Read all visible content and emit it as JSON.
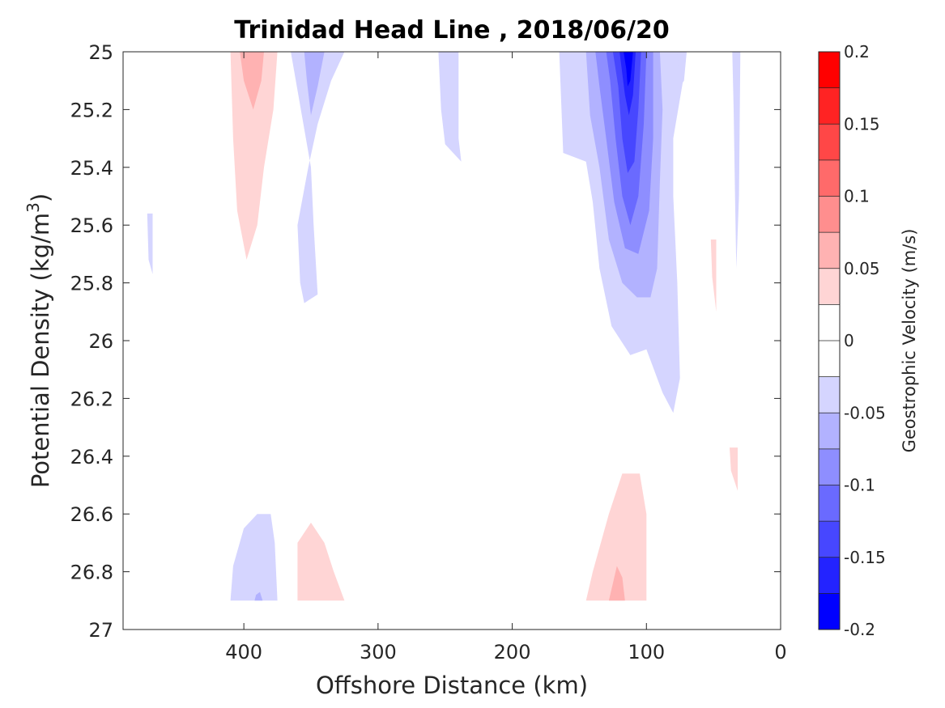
{
  "chart_data": {
    "type": "contour",
    "title": "Trinidad Head Line , 2018/06/20",
    "xlabel": "Offshore Distance (km)",
    "ylabel": "Potential Density (kg/m",
    "ylabel_superscript": "3",
    "ylabel_suffix": ")",
    "xlim": [
      490,
      0
    ],
    "ylim": [
      25,
      27
    ],
    "x_reversed": true,
    "y_reversed": true,
    "x_ticks": [
      400,
      300,
      200,
      100,
      0
    ],
    "x_tick_labels": [
      "400",
      "300",
      "200",
      "100",
      "0"
    ],
    "y_ticks": [
      25,
      25.2,
      25.4,
      25.6,
      25.8,
      26,
      26.2,
      26.4,
      26.6,
      26.8,
      27
    ],
    "y_tick_labels": [
      "25",
      "25.2",
      "25.4",
      "25.6",
      "25.8",
      "26",
      "26.2",
      "26.4",
      "26.6",
      "26.8",
      "27"
    ],
    "colorbar": {
      "label": "Geostrophic Velocity (m/s)",
      "range": [
        -0.2,
        0.2
      ],
      "ticks": [
        0.2,
        0.15,
        0.1,
        0.05,
        0,
        -0.05,
        -0.1,
        -0.15,
        -0.2
      ],
      "tick_labels": [
        "0.2",
        "0.15",
        "0.1",
        "0.05",
        "0",
        "-0.05",
        "-0.1",
        "-0.15",
        "-0.2"
      ],
      "levels": [
        {
          "min": 0.175,
          "max": 0.2,
          "color": "#ff0000"
        },
        {
          "min": 0.15,
          "max": 0.175,
          "color": "#ff2323"
        },
        {
          "min": 0.125,
          "max": 0.15,
          "color": "#ff4747"
        },
        {
          "min": 0.1,
          "max": 0.125,
          "color": "#ff6a6a"
        },
        {
          "min": 0.075,
          "max": 0.1,
          "color": "#ff8e8e"
        },
        {
          "min": 0.05,
          "max": 0.075,
          "color": "#ffb2b2"
        },
        {
          "min": 0.025,
          "max": 0.05,
          "color": "#ffd5d5"
        },
        {
          "min": 0,
          "max": 0.025,
          "color": "#ffffff"
        },
        {
          "min": -0.025,
          "max": 0,
          "color": "#ffffff"
        },
        {
          "min": -0.05,
          "max": -0.025,
          "color": "#d5d5ff"
        },
        {
          "min": -0.075,
          "max": -0.05,
          "color": "#b2b2ff"
        },
        {
          "min": -0.1,
          "max": -0.075,
          "color": "#8e8eff"
        },
        {
          "min": -0.125,
          "max": -0.1,
          "color": "#6a6aff"
        },
        {
          "min": -0.15,
          "max": -0.125,
          "color": "#4747ff"
        },
        {
          "min": -0.175,
          "max": -0.15,
          "color": "#2323ff"
        },
        {
          "min": -0.2,
          "max": -0.175,
          "color": "#0000ff"
        }
      ]
    },
    "regions": [
      {
        "level": -0.0375,
        "points": [
          [
            165,
            25
          ],
          [
            70,
            25
          ],
          [
            72,
            25.08
          ],
          [
            80,
            25.3
          ],
          [
            80,
            25.5
          ],
          [
            77,
            25.8
          ],
          [
            75,
            26.13
          ],
          [
            80,
            26.25
          ],
          [
            88,
            26.18
          ],
          [
            100,
            26.03
          ],
          [
            112,
            26.05
          ],
          [
            126,
            25.95
          ],
          [
            135,
            25.75
          ],
          [
            140,
            25.52
          ],
          [
            145,
            25.38
          ],
          [
            162,
            25.35
          ]
        ]
      },
      {
        "level": -0.0625,
        "points": [
          [
            145,
            25
          ],
          [
            90,
            25
          ],
          [
            88,
            25.2
          ],
          [
            90,
            25.45
          ],
          [
            92,
            25.75
          ],
          [
            97,
            25.85
          ],
          [
            107,
            25.85
          ],
          [
            118,
            25.8
          ],
          [
            128,
            25.65
          ],
          [
            135,
            25.4
          ],
          [
            142,
            25.22
          ]
        ]
      },
      {
        "level": -0.0875,
        "points": [
          [
            138,
            25
          ],
          [
            95,
            25
          ],
          [
            95,
            25.3
          ],
          [
            98,
            25.55
          ],
          [
            106,
            25.7
          ],
          [
            116,
            25.68
          ],
          [
            124,
            25.52
          ],
          [
            130,
            25.3
          ],
          [
            135,
            25.12
          ]
        ]
      },
      {
        "level": -0.1125,
        "points": [
          [
            130,
            25
          ],
          [
            100,
            25
          ],
          [
            102,
            25.25
          ],
          [
            106,
            25.5
          ],
          [
            112,
            25.6
          ],
          [
            118,
            25.5
          ],
          [
            123,
            25.3
          ],
          [
            127,
            25.1
          ]
        ]
      },
      {
        "level": -0.1375,
        "points": [
          [
            125,
            25
          ],
          [
            104,
            25
          ],
          [
            106,
            25.2
          ],
          [
            109,
            25.38
          ],
          [
            114,
            25.42
          ],
          [
            118,
            25.3
          ],
          [
            121,
            25.12
          ]
        ]
      },
      {
        "level": -0.1625,
        "points": [
          [
            120,
            25
          ],
          [
            108,
            25
          ],
          [
            110,
            25.15
          ],
          [
            113,
            25.22
          ],
          [
            116,
            25.15
          ]
        ]
      },
      {
        "level": -0.1875,
        "points": [
          [
            117,
            25
          ],
          [
            110,
            25
          ],
          [
            112,
            25.1
          ],
          [
            114,
            25.12
          ],
          [
            115,
            25.06
          ]
        ]
      },
      {
        "level": -0.0375,
        "points": [
          [
            365,
            25
          ],
          [
            325,
            25
          ],
          [
            335,
            25.1
          ],
          [
            345,
            25.25
          ],
          [
            352,
            25.4
          ],
          [
            360,
            25.6
          ],
          [
            358,
            25.8
          ],
          [
            355,
            25.87
          ],
          [
            345,
            25.84
          ],
          [
            348,
            25.6
          ],
          [
            350,
            25.4
          ]
        ]
      },
      {
        "level": -0.0625,
        "points": [
          [
            355,
            25
          ],
          [
            340,
            25
          ],
          [
            345,
            25.12
          ],
          [
            350,
            25.22
          ],
          [
            353,
            25.1
          ]
        ]
      },
      {
        "level": -0.0375,
        "points": [
          [
            255,
            25
          ],
          [
            240,
            25
          ],
          [
            240,
            25.3
          ],
          [
            238,
            25.38
          ],
          [
            250,
            25.32
          ],
          [
            253,
            25.2
          ]
        ]
      },
      {
        "level": -0.0375,
        "points": [
          [
            77,
            25
          ],
          [
            70,
            25
          ],
          [
            72,
            25.1
          ],
          [
            75,
            25.12
          ]
        ]
      },
      {
        "level": -0.0375,
        "points": [
          [
            36,
            25
          ],
          [
            30,
            25
          ],
          [
            31,
            25.5
          ],
          [
            33,
            25.75
          ],
          [
            34,
            25.5
          ],
          [
            35,
            25.2
          ]
        ]
      },
      {
        "level": -0.0375,
        "points": [
          [
            472,
            25.56
          ],
          [
            468,
            25.56
          ],
          [
            468,
            25.77
          ],
          [
            471,
            25.72
          ]
        ]
      },
      {
        "level": 0.0375,
        "points": [
          [
            410,
            25
          ],
          [
            375,
            25
          ],
          [
            378,
            25.2
          ],
          [
            385,
            25.4
          ],
          [
            390,
            25.6
          ],
          [
            398,
            25.72
          ],
          [
            405,
            25.55
          ],
          [
            408,
            25.3
          ]
        ]
      },
      {
        "level": 0.0625,
        "points": [
          [
            403,
            25
          ],
          [
            385,
            25
          ],
          [
            387,
            25.1
          ],
          [
            393,
            25.2
          ],
          [
            400,
            25.1
          ]
        ]
      },
      {
        "level": 0.0375,
        "points": [
          [
            360,
            26.9
          ],
          [
            325,
            26.9
          ],
          [
            333,
            26.8
          ],
          [
            340,
            26.7
          ],
          [
            350,
            26.63
          ],
          [
            360,
            26.7
          ]
        ]
      },
      {
        "level": 0.0375,
        "points": [
          [
            145,
            26.9
          ],
          [
            100,
            26.9
          ],
          [
            100,
            26.6
          ],
          [
            105,
            26.46
          ],
          [
            118,
            26.46
          ],
          [
            128,
            26.6
          ],
          [
            140,
            26.8
          ]
        ]
      },
      {
        "level": 0.0625,
        "points": [
          [
            128,
            26.9
          ],
          [
            116,
            26.9
          ],
          [
            118,
            26.82
          ],
          [
            122,
            26.78
          ],
          [
            125,
            26.84
          ]
        ]
      },
      {
        "level": 0.0375,
        "points": [
          [
            52,
            25.65
          ],
          [
            48,
            25.65
          ],
          [
            48,
            25.9
          ],
          [
            51,
            25.78
          ]
        ]
      },
      {
        "level": 0.0375,
        "points": [
          [
            38,
            26.37
          ],
          [
            32,
            26.37
          ],
          [
            32,
            26.52
          ],
          [
            37,
            26.45
          ]
        ]
      },
      {
        "level": -0.0375,
        "points": [
          [
            410,
            26.9
          ],
          [
            375,
            26.9
          ],
          [
            377,
            26.7
          ],
          [
            380,
            26.6
          ],
          [
            390,
            26.6
          ],
          [
            400,
            26.65
          ],
          [
            408,
            26.78
          ]
        ]
      },
      {
        "level": -0.0625,
        "points": [
          [
            392,
            26.9
          ],
          [
            386,
            26.9
          ],
          [
            388,
            26.87
          ],
          [
            391,
            26.88
          ]
        ]
      }
    ]
  }
}
